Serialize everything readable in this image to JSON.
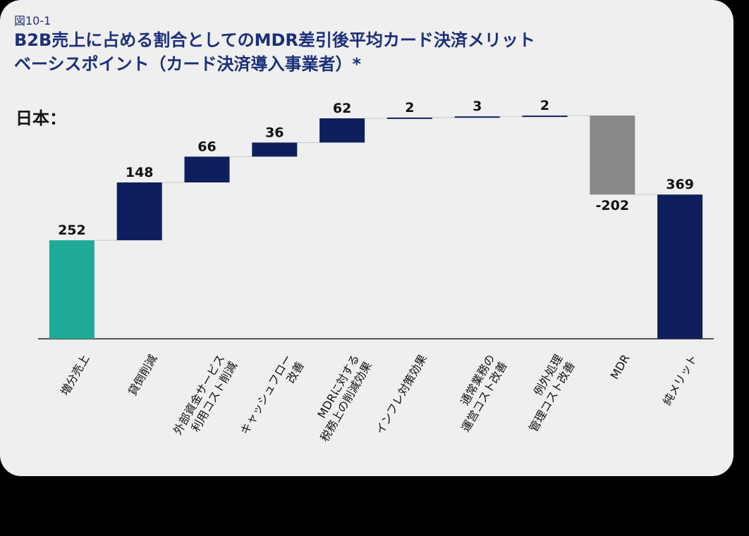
{
  "chart_data": {
    "type": "waterfall",
    "figure_label": "図10-1",
    "title": "B2B売上に占める割合としてのMDR差引後平均カード決済メリット\nベーシスポイント（カード決済導入事業者）*",
    "subtitle": "日本：",
    "categories": [
      "増分売上",
      "貸倒削減",
      "外部資金サービス\n利用コスト削減",
      "キャッシュフロー\n改善",
      "MDRに対する\n税務上の削減効果",
      "インフレ対策効果",
      "通常業務の\n運営コスト改善",
      "例外処理\n管理コスト改善",
      "MDR",
      "純メリット"
    ],
    "values": [
      252,
      148,
      66,
      36,
      62,
      2,
      3,
      2,
      -202,
      369
    ],
    "measures": [
      "relative",
      "relative",
      "relative",
      "relative",
      "relative",
      "relative",
      "relative",
      "relative",
      "relative",
      "total"
    ],
    "colors": [
      "#1faa98",
      "#0f1f5e",
      "#0f1f5e",
      "#0f1f5e",
      "#0f1f5e",
      "#0f1f5e",
      "#0f1f5e",
      "#0f1f5e",
      "#888888",
      "#0f1f5e"
    ],
    "ylim": [
      0,
      600
    ]
  }
}
